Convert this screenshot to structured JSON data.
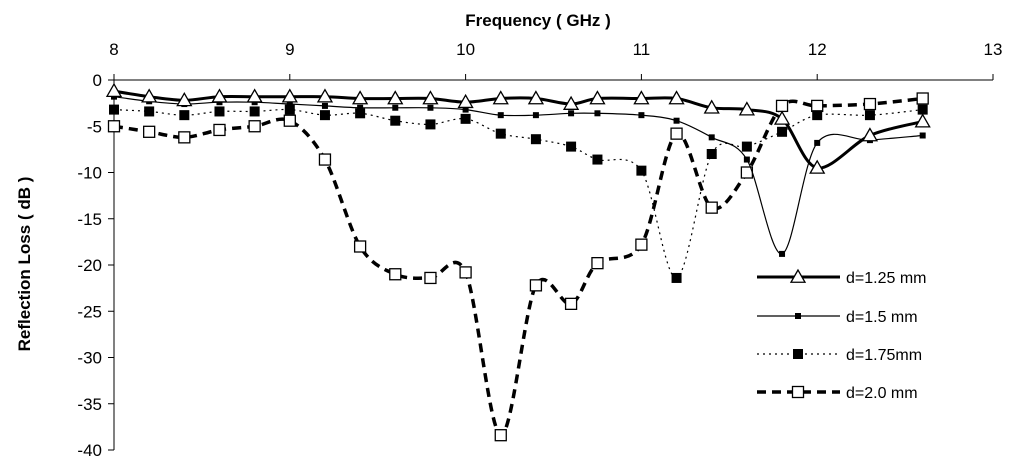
{
  "chart_data": {
    "type": "line",
    "xlabel": "Frequency ( GHz )",
    "ylabel": "Reflection Loss ( dB )",
    "xlim": [
      8,
      13
    ],
    "ylim": [
      -40,
      0
    ],
    "x_ticks": [
      "8",
      "9",
      "10",
      "11",
      "12",
      "13"
    ],
    "y_ticks": [
      "0",
      "-5",
      "-10",
      "-15",
      "-20",
      "-25",
      "-30",
      "-35",
      "-40"
    ],
    "x_axis_position": "top",
    "grid": false,
    "legend_position": "center-right",
    "series": [
      {
        "name": "d=1.25 mm",
        "line": "thick-solid",
        "marker": "open-triangle",
        "x": [
          8.0,
          8.2,
          8.4,
          8.6,
          8.8,
          9.0,
          9.2,
          9.4,
          9.6,
          9.8,
          10.0,
          10.2,
          10.4,
          10.6,
          10.75,
          11.0,
          11.2,
          11.4,
          11.6,
          11.8,
          12.0,
          12.3,
          12.6
        ],
        "values": [
          -1.2,
          -1.8,
          -2.2,
          -1.8,
          -1.8,
          -1.8,
          -1.8,
          -2.0,
          -2.0,
          -2.0,
          -2.4,
          -2.0,
          -2.0,
          -2.6,
          -2.0,
          -2.0,
          -2.0,
          -3.0,
          -3.2,
          -4.2,
          -9.5,
          -6.0,
          -4.5
        ]
      },
      {
        "name": "d=1.5 mm",
        "line": "thin-solid",
        "marker": "small-filled-square",
        "x": [
          8.0,
          8.2,
          8.4,
          8.6,
          8.8,
          9.0,
          9.2,
          9.4,
          9.6,
          9.8,
          10.0,
          10.2,
          10.4,
          10.6,
          10.75,
          11.0,
          11.2,
          11.4,
          11.6,
          11.8,
          12.0,
          12.3,
          12.6
        ],
        "values": [
          -1.8,
          -2.3,
          -2.6,
          -2.4,
          -2.4,
          -2.6,
          -2.8,
          -3.0,
          -3.0,
          -3.0,
          -3.2,
          -3.8,
          -3.8,
          -3.6,
          -3.6,
          -3.8,
          -4.4,
          -6.2,
          -8.6,
          -18.8,
          -6.8,
          -6.5,
          -6.0
        ]
      },
      {
        "name": "d=1.75mm",
        "line": "dotted",
        "marker": "filled-square",
        "x": [
          8.0,
          8.2,
          8.4,
          8.6,
          8.8,
          9.0,
          9.2,
          9.4,
          9.6,
          9.8,
          10.0,
          10.2,
          10.4,
          10.6,
          10.75,
          11.0,
          11.2,
          11.4,
          11.6,
          11.8,
          12.0,
          12.3,
          12.6
        ],
        "values": [
          -3.2,
          -3.4,
          -3.8,
          -3.4,
          -3.4,
          -3.2,
          -3.8,
          -3.6,
          -4.4,
          -4.8,
          -4.2,
          -5.8,
          -6.4,
          -7.2,
          -8.6,
          -9.8,
          -21.4,
          -8.0,
          -7.2,
          -5.6,
          -3.8,
          -3.8,
          -3.2
        ]
      },
      {
        "name": "d=2.0 mm",
        "line": "thick-dashed",
        "marker": "open-square",
        "x": [
          8.0,
          8.2,
          8.4,
          8.6,
          8.8,
          9.0,
          9.2,
          9.4,
          9.6,
          9.8,
          10.0,
          10.2,
          10.4,
          10.6,
          10.75,
          11.0,
          11.2,
          11.4,
          11.6,
          11.8,
          12.0,
          12.3,
          12.6
        ],
        "values": [
          -5.0,
          -5.6,
          -6.2,
          -5.4,
          -5.0,
          -4.4,
          -8.6,
          -18.0,
          -21.0,
          -21.4,
          -20.8,
          -38.4,
          -22.2,
          -24.2,
          -19.8,
          -17.8,
          -5.8,
          -13.8,
          -10.0,
          -2.8,
          -2.8,
          -2.6,
          -2.0
        ]
      }
    ]
  }
}
